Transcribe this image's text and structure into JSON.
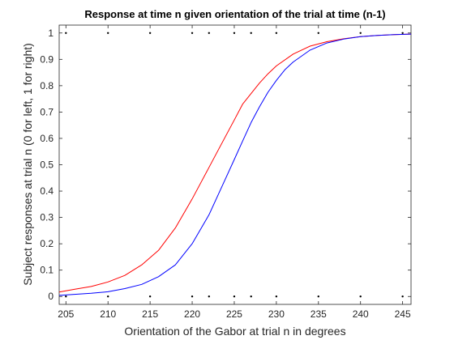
{
  "chart_data": {
    "type": "line",
    "title": "Response at time n given orientation of the trial at time (n-1)",
    "xlabel": "Orientation of the Gabor at trial n in degrees",
    "ylabel": "Subject responses at trial n (0 for left, 1 for right)",
    "xlim": [
      204.2,
      246
    ],
    "ylim": [
      -0.03,
      1.03
    ],
    "x_ticks": [
      205,
      210,
      215,
      220,
      225,
      230,
      235,
      240,
      245
    ],
    "y_ticks": [
      0,
      0.1,
      0.2,
      0.3,
      0.4,
      0.5,
      0.6,
      0.7,
      0.8,
      0.9,
      1
    ],
    "grid": false,
    "legend": "none",
    "series": [
      {
        "color": "#ff0000",
        "x": [
          204.2,
          206,
          208,
          210,
          212,
          214,
          216,
          218,
          220,
          221,
          222,
          223,
          224,
          225,
          226,
          227,
          228,
          229,
          230,
          232,
          234,
          236,
          238,
          240,
          242,
          244,
          246
        ],
        "y": [
          0.017,
          0.027,
          0.038,
          0.055,
          0.08,
          0.12,
          0.175,
          0.26,
          0.37,
          0.43,
          0.49,
          0.55,
          0.61,
          0.67,
          0.73,
          0.77,
          0.81,
          0.845,
          0.875,
          0.92,
          0.95,
          0.967,
          0.978,
          0.986,
          0.991,
          0.994,
          0.996
        ]
      },
      {
        "color": "#0000ff",
        "x": [
          204.2,
          206,
          208,
          210,
          212,
          214,
          216,
          218,
          220,
          222,
          223,
          224,
          225,
          226,
          227,
          228,
          229,
          230,
          231,
          232,
          234,
          236,
          238,
          240,
          242,
          244,
          246
        ],
        "y": [
          0.004,
          0.008,
          0.012,
          0.018,
          0.03,
          0.046,
          0.075,
          0.12,
          0.2,
          0.31,
          0.38,
          0.45,
          0.52,
          0.59,
          0.66,
          0.72,
          0.775,
          0.82,
          0.86,
          0.89,
          0.935,
          0.962,
          0.977,
          0.986,
          0.991,
          0.994,
          0.996
        ]
      }
    ],
    "markers": {
      "y_top": 1,
      "y_bottom": 0,
      "x": [
        205,
        210,
        215,
        220,
        222,
        225,
        227,
        230,
        235,
        240,
        245
      ]
    }
  }
}
